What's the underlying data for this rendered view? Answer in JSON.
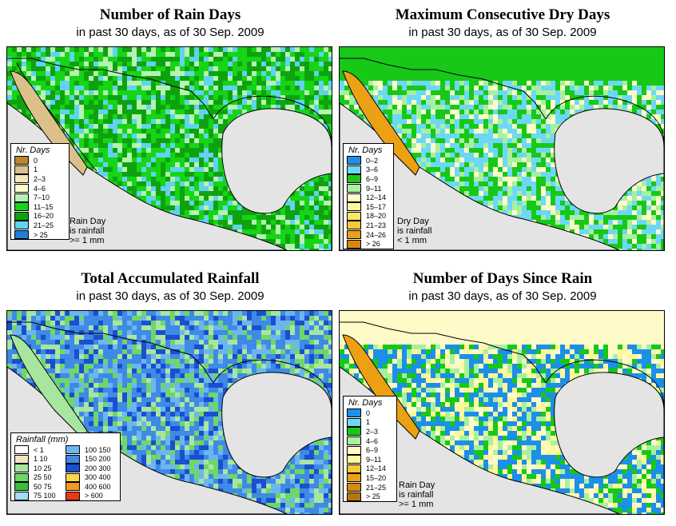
{
  "panels": [
    {
      "title": "Number of Rain Days",
      "subtitle": "in past 30 days, as of  30 Sep. 2009",
      "legend_title": "Nr. Days",
      "legend": [
        {
          "label": "0",
          "color": "#b8862d"
        },
        {
          "label": "1",
          "color": "#dcc08a"
        },
        {
          "label": "2–3",
          "color": "#f5e6bc"
        },
        {
          "label": "4–6",
          "color": "#fefccc"
        },
        {
          "label": "7–10",
          "color": "#b6f3b2"
        },
        {
          "label": "11–15",
          "color": "#16d516"
        },
        {
          "label": "16–20",
          "color": "#0ea30e"
        },
        {
          "label": "21–25",
          "color": "#61d2f0"
        },
        {
          "label": "> 25",
          "color": "#1c7fd8"
        }
      ],
      "note": [
        "Rain Day",
        "is rainfall",
        ">= 1 mm"
      ]
    },
    {
      "title": "Maximum Consecutive Dry Days",
      "subtitle": "in past 30 days, as of  30 Sep. 2009",
      "legend_title": "Nr. Days",
      "legend": [
        {
          "label": "0–2",
          "color": "#1c8fe8"
        },
        {
          "label": "3–6",
          "color": "#6dd8f5"
        },
        {
          "label": "6–9",
          "color": "#17c817"
        },
        {
          "label": "9–11",
          "color": "#a8f0a0"
        },
        {
          "label": "12–14",
          "color": "#fefbc8"
        },
        {
          "label": "15–17",
          "color": "#fef69a"
        },
        {
          "label": "18–20",
          "color": "#fde56c"
        },
        {
          "label": "21–23",
          "color": "#f8c839"
        },
        {
          "label": "24–26",
          "color": "#eca014"
        },
        {
          "label": "> 26",
          "color": "#d8880c"
        }
      ],
      "note": [
        "Dry Day",
        "is rainfall",
        "< 1 mm"
      ]
    },
    {
      "title": "Total Accumulated Rainfall",
      "subtitle": "in past 30 days, as of  30 Sep. 2009",
      "legend_title": "Rainfall (mm)",
      "legend_left": [
        {
          "label": "< 1",
          "color": "#ffffff"
        },
        {
          "label": "1    10",
          "color": "#f3e3c0"
        },
        {
          "label": "10   25",
          "color": "#a8e6a0"
        },
        {
          "label": "25   50",
          "color": "#6fd66a"
        },
        {
          "label": "50   75",
          "color": "#36c03a"
        },
        {
          "label": "75  100",
          "color": "#a2dcf5"
        }
      ],
      "legend_right": [
        {
          "label": "100 150",
          "color": "#6cb6f0"
        },
        {
          "label": "150 200",
          "color": "#3f8ae6"
        },
        {
          "label": "200 300",
          "color": "#1a4fd0"
        },
        {
          "label": "300 400",
          "color": "#f8d84a"
        },
        {
          "label": "400 600",
          "color": "#f59a20"
        },
        {
          "label": "> 600",
          "color": "#e83a12"
        }
      ]
    },
    {
      "title": "Number of Days Since Rain",
      "subtitle": "in past 30 days, as of  30 Sep. 2009",
      "legend_title": "Nr. Days",
      "legend": [
        {
          "label": "0",
          "color": "#1c8fe8"
        },
        {
          "label": "1",
          "color": "#6dd8f5"
        },
        {
          "label": "2–3",
          "color": "#17c817"
        },
        {
          "label": "4–6",
          "color": "#a8f0a0"
        },
        {
          "label": "6–9",
          "color": "#fefbc8"
        },
        {
          "label": "9–11",
          "color": "#fef69a"
        },
        {
          "label": "12–14",
          "color": "#f8c839"
        },
        {
          "label": "15–20",
          "color": "#eca014"
        },
        {
          "label": "21–25",
          "color": "#d8880c"
        },
        {
          "label": "> 25",
          "color": "#b8760a"
        }
      ],
      "note": [
        "Rain Day",
        "is rainfall",
        ">= 1 mm"
      ]
    }
  ]
}
